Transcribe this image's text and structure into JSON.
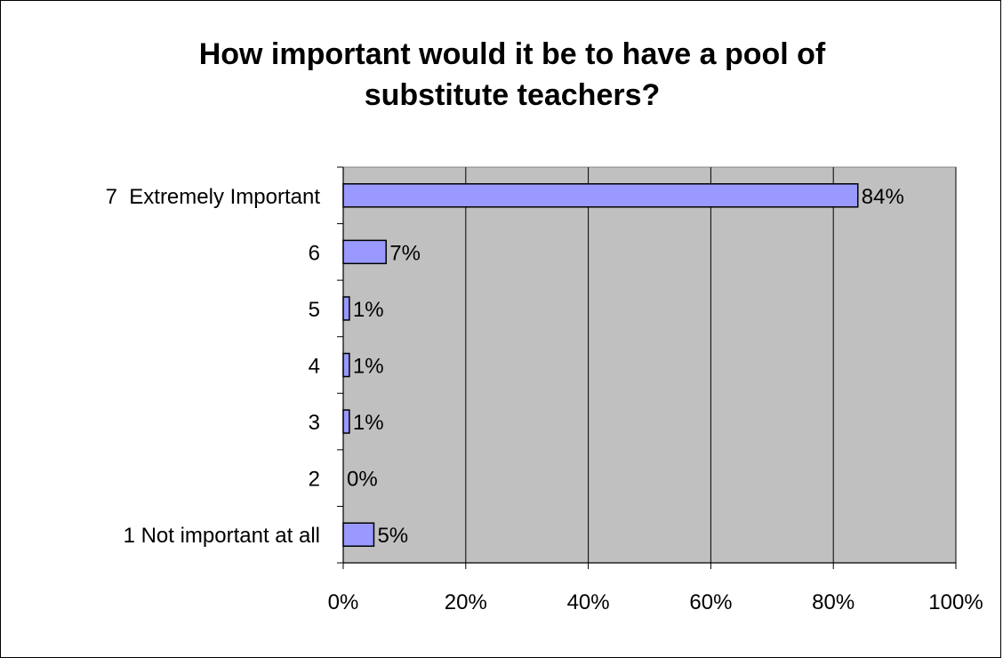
{
  "chart_data": {
    "type": "bar",
    "orientation": "horizontal",
    "title_lines": [
      "How important would it be to have a pool of",
      "substitute teachers?"
    ],
    "categories": [
      "7  Extremely Important",
      "6",
      "5",
      "4",
      "3",
      "2",
      "1 Not important at all"
    ],
    "values": [
      84,
      7,
      1,
      1,
      1,
      0,
      5
    ],
    "data_labels": [
      "84%",
      "7%",
      "1%",
      "1%",
      "1%",
      "0%",
      "5%"
    ],
    "x_ticks": [
      "0%",
      "20%",
      "40%",
      "60%",
      "80%",
      "100%"
    ],
    "xlim": [
      0,
      100
    ],
    "grid": true,
    "legend": "none",
    "colors": {
      "bar_fill": "#9999ff",
      "bar_stroke": "#000000",
      "plot_background": "#c0c0c0",
      "gridline": "#000000"
    }
  }
}
